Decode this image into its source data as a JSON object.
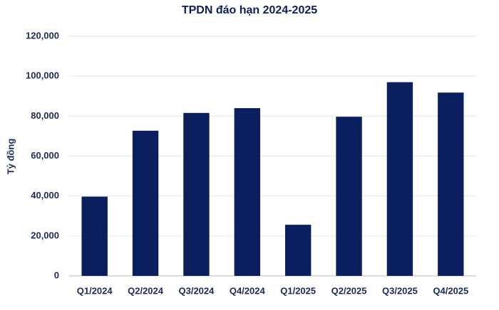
{
  "chart_data": {
    "type": "bar",
    "title": "TPDN đáo hạn 2024-2025",
    "y_label": "Tỷ đồng",
    "categories": [
      "Q1/2024",
      "Q2/2024",
      "Q3/2024",
      "Q4/2024",
      "Q1/2025",
      "Q2/2025",
      "Q3/2025",
      "Q4/2025"
    ],
    "values": [
      39700,
      72700,
      81600,
      84000,
      25600,
      79700,
      97000,
      91800
    ],
    "color": "#0b1f5e",
    "ylim": [
      0,
      120000
    ],
    "yticks": [
      0,
      {
        "value": 20000,
        "label": "20,000"
      },
      {
        "value": 40000,
        "label": "40,000"
      },
      {
        "value": 60000,
        "label": "60,000"
      },
      {
        "value": 80000,
        "label": "80,000"
      },
      {
        "value": 100000,
        "label": "100,000"
      },
      {
        "value": 120000,
        "label": "120,000"
      }
    ],
    "grid": true
  }
}
